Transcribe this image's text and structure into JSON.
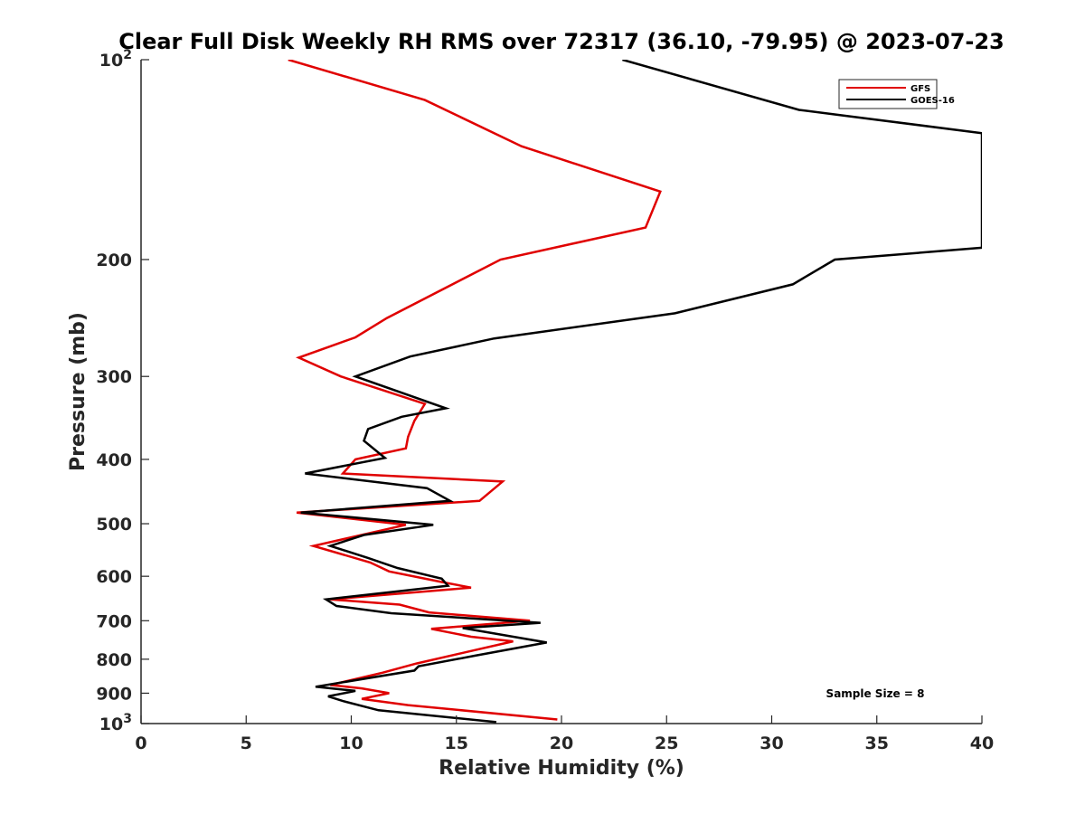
{
  "chart_data": {
    "type": "line",
    "title": "Clear Full Disk Weekly RH RMS over 72317 (36.10, -79.95) @ 2023-07-23",
    "xlabel": "Relative Humidity (%)",
    "ylabel": "Pressure (mb)",
    "xlim": [
      0,
      40
    ],
    "ylim": [
      100,
      1000
    ],
    "yscale": "log",
    "y_reversed": true,
    "grid": false,
    "legend_position": "top-right",
    "x_ticks": [
      {
        "value": 0,
        "label": "0"
      },
      {
        "value": 5,
        "label": "5"
      },
      {
        "value": 10,
        "label": "10"
      },
      {
        "value": 15,
        "label": "15"
      },
      {
        "value": 20,
        "label": "20"
      },
      {
        "value": 25,
        "label": "25"
      },
      {
        "value": 30,
        "label": "30"
      },
      {
        "value": 35,
        "label": "35"
      },
      {
        "value": 40,
        "label": "40"
      }
    ],
    "y_ticks": [
      {
        "value": 100,
        "base": "10",
        "exp": "2"
      },
      {
        "value": 200,
        "label": "200"
      },
      {
        "value": 300,
        "label": "300"
      },
      {
        "value": 400,
        "label": "400"
      },
      {
        "value": 500,
        "label": "500"
      },
      {
        "value": 600,
        "label": "600"
      },
      {
        "value": 700,
        "label": "700"
      },
      {
        "value": 800,
        "label": "800"
      },
      {
        "value": 900,
        "label": "900"
      },
      {
        "value": 1000,
        "base": "10",
        "exp": "3"
      }
    ],
    "annotation": "Sample Size = 8",
    "series": [
      {
        "name": "GFS",
        "color": "#e00000",
        "points": [
          [
            7.0,
            100
          ],
          [
            13.5,
            115
          ],
          [
            18.1,
            135
          ],
          [
            24.7,
            158
          ],
          [
            24.0,
            179
          ],
          [
            17.1,
            200
          ],
          [
            11.7,
            245
          ],
          [
            10.2,
            262
          ],
          [
            7.5,
            281
          ],
          [
            9.5,
            300
          ],
          [
            13.5,
            330
          ],
          [
            13.0,
            350
          ],
          [
            12.7,
            370
          ],
          [
            12.6,
            385
          ],
          [
            10.2,
            400
          ],
          [
            9.6,
            420
          ],
          [
            17.2,
            432
          ],
          [
            16.1,
            462
          ],
          [
            7.4,
            481
          ],
          [
            12.6,
            502
          ],
          [
            8.2,
            540
          ],
          [
            10.9,
            572
          ],
          [
            11.8,
            590
          ],
          [
            14.3,
            612
          ],
          [
            15.7,
            624
          ],
          [
            9.0,
            650
          ],
          [
            12.3,
            662
          ],
          [
            13.7,
            680
          ],
          [
            18.5,
            700
          ],
          [
            13.8,
            720
          ],
          [
            15.7,
            740
          ],
          [
            17.7,
            752
          ],
          [
            15.5,
            780
          ],
          [
            13.1,
            812
          ],
          [
            11.5,
            838
          ],
          [
            9.0,
            875
          ],
          [
            10.5,
            885
          ],
          [
            11.8,
            900
          ],
          [
            10.5,
            918
          ],
          [
            12.7,
            938
          ],
          [
            19.8,
            986
          ]
        ]
      },
      {
        "name": "GOES-16",
        "color": "#000000",
        "points": [
          [
            22.9,
            100
          ],
          [
            31.3,
            119
          ],
          [
            40.0,
            129
          ],
          [
            40.0,
            192
          ],
          [
            33.0,
            200
          ],
          [
            31.0,
            218
          ],
          [
            25.4,
            241
          ],
          [
            16.8,
            263
          ],
          [
            12.8,
            280
          ],
          [
            10.2,
            300
          ],
          [
            14.5,
            335
          ],
          [
            12.4,
            345
          ],
          [
            10.8,
            360
          ],
          [
            10.6,
            375
          ],
          [
            11.6,
            398
          ],
          [
            7.8,
            420
          ],
          [
            13.6,
            442
          ],
          [
            14.7,
            462
          ],
          [
            7.6,
            481
          ],
          [
            13.9,
            502
          ],
          [
            10.6,
            520
          ],
          [
            9.0,
            540
          ],
          [
            10.8,
            563
          ],
          [
            12.2,
            583
          ],
          [
            14.3,
            605
          ],
          [
            14.6,
            620
          ],
          [
            8.8,
            650
          ],
          [
            9.3,
            665
          ],
          [
            11.9,
            682
          ],
          [
            19.0,
            705
          ],
          [
            15.3,
            718
          ],
          [
            19.3,
            755
          ],
          [
            15.9,
            790
          ],
          [
            13.2,
            820
          ],
          [
            13.0,
            832
          ],
          [
            8.3,
            880
          ],
          [
            10.2,
            893
          ],
          [
            8.9,
            910
          ],
          [
            9.6,
            925
          ],
          [
            11.3,
            955
          ],
          [
            16.9,
            995
          ]
        ]
      }
    ]
  }
}
